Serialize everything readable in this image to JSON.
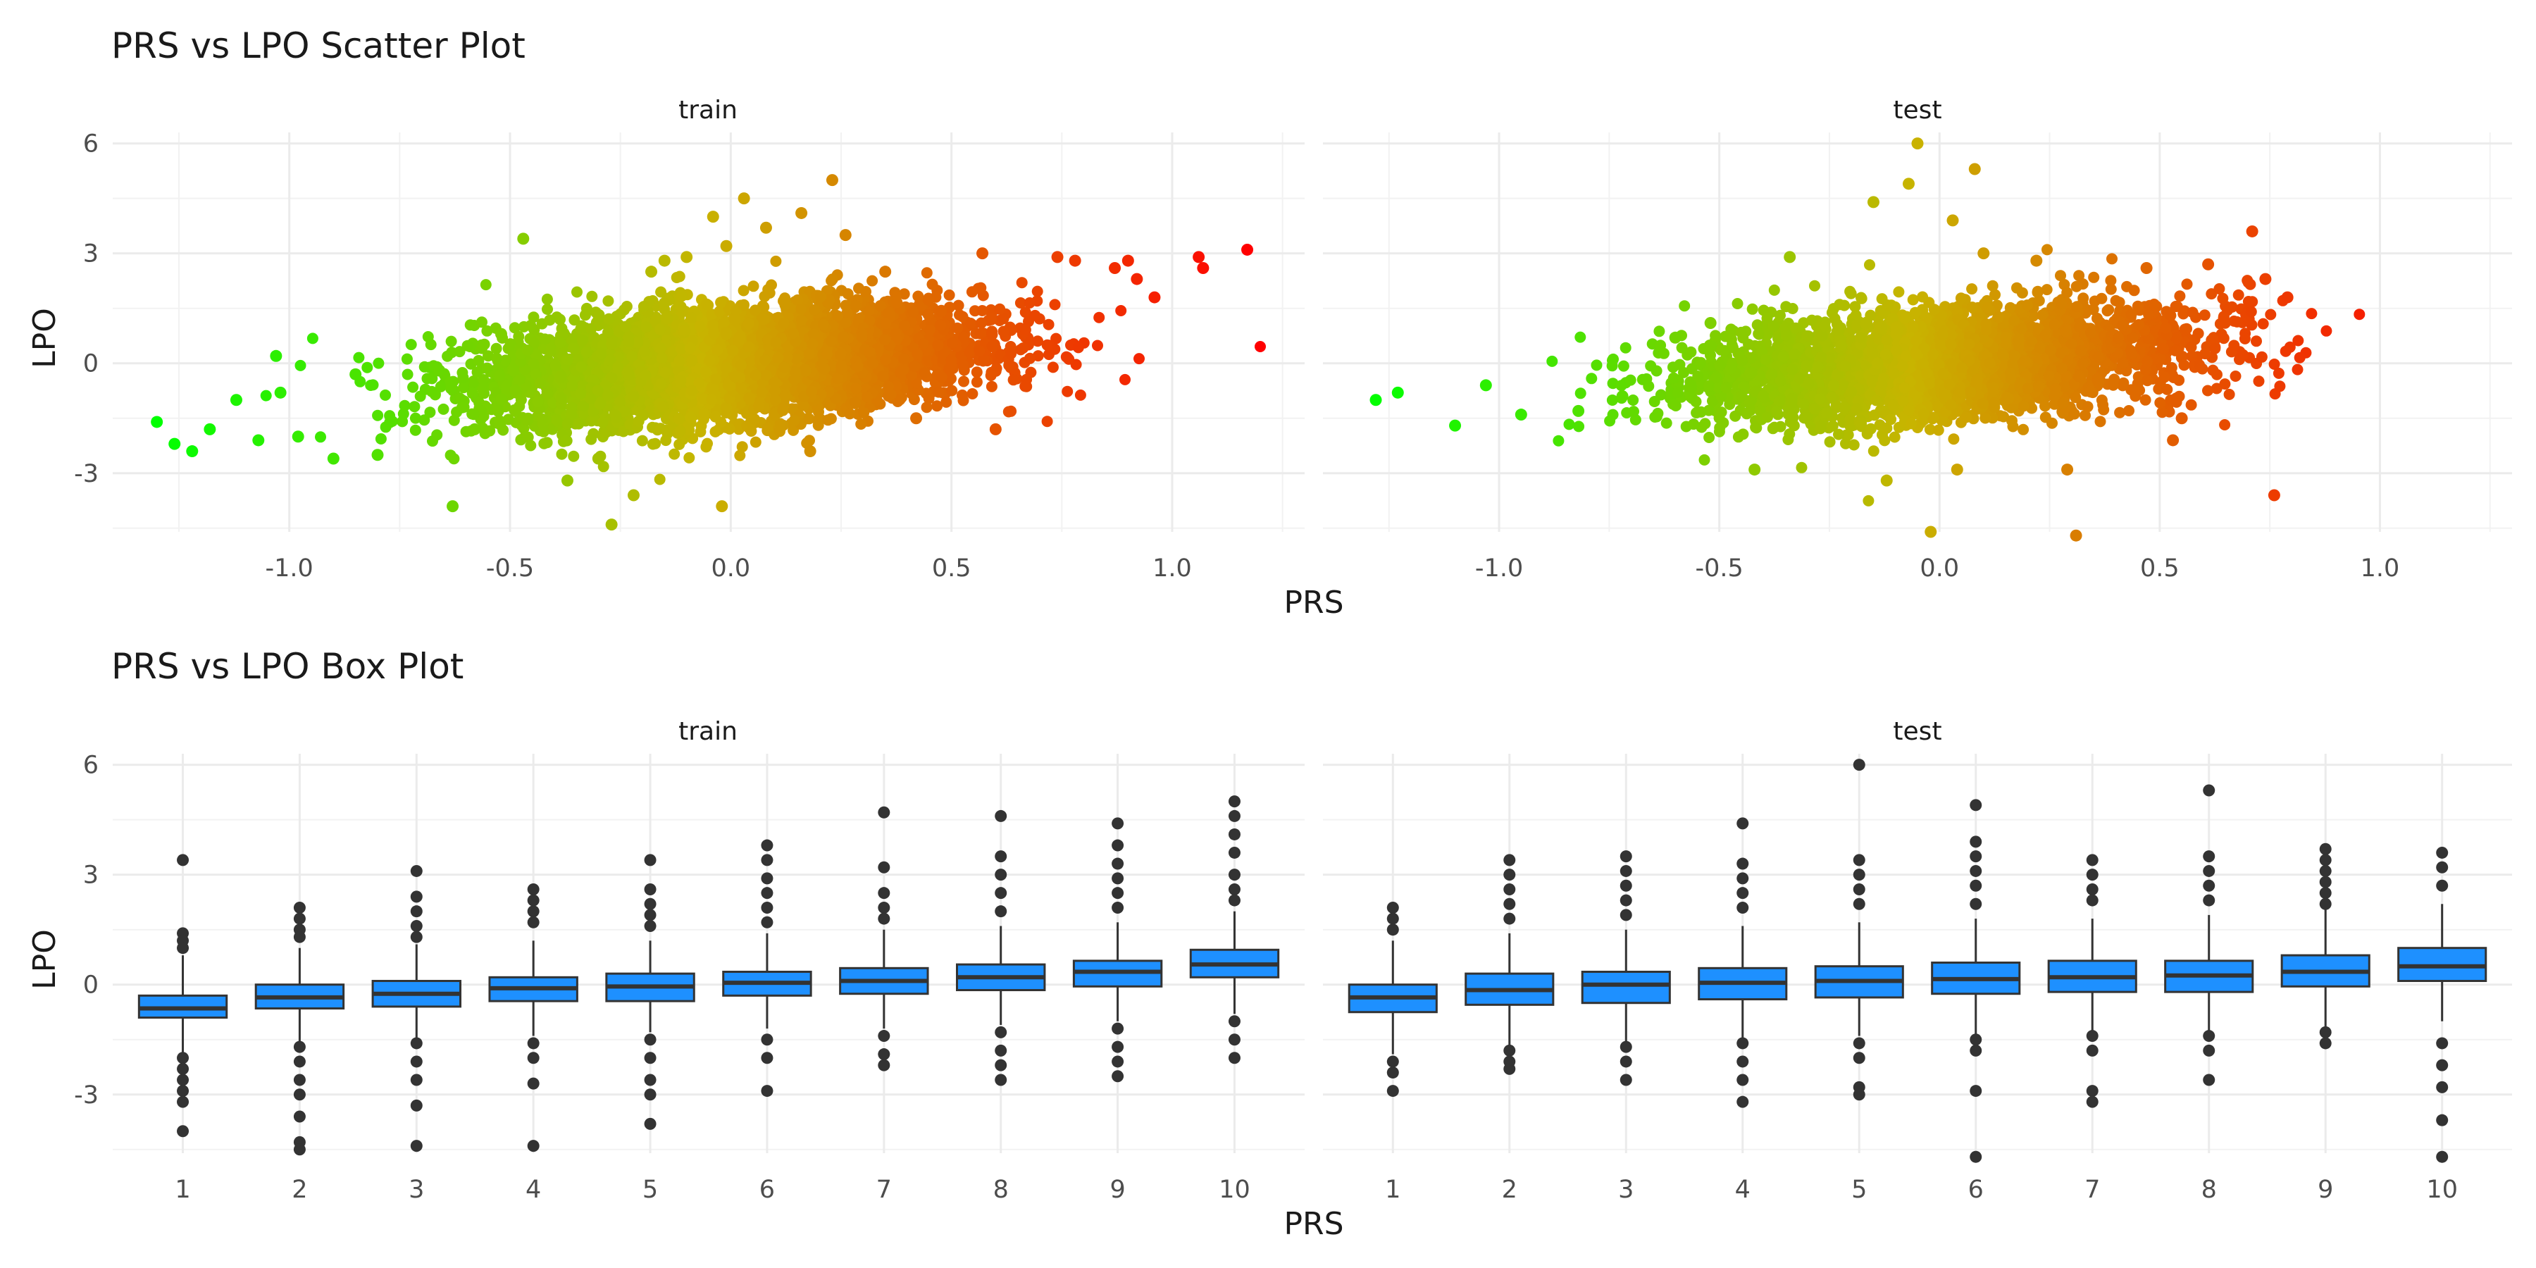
{
  "chart_data": [
    {
      "type": "scatter",
      "title": "PRS vs LPO Scatter Plot",
      "xlabel": "PRS",
      "ylabel": "LPO",
      "facets": [
        "train",
        "test"
      ],
      "xlim": [
        -1.4,
        1.3
      ],
      "ylim": [
        -4.6,
        6.3
      ],
      "xticks": [
        "-1.0",
        "-0.5",
        "0.0",
        "0.5",
        "1.0"
      ],
      "xtick_values": [
        -1.0,
        -0.5,
        0.0,
        0.5,
        1.0
      ],
      "yticks": [
        "-3",
        "0",
        "3",
        "6"
      ],
      "ytick_values": [
        -3,
        0,
        3,
        6
      ],
      "color_scale": {
        "low": "#00ff00",
        "mid": "#c8b400",
        "high": "#ff0000",
        "mapped_to": "PRS"
      },
      "grid": true,
      "legend": "none",
      "notes": "dense cloud of several thousand points per facet; representative summary points below",
      "series": [
        {
          "facet": "train",
          "points": [
            [
              -1.3,
              -1.6
            ],
            [
              -1.26,
              -2.2
            ],
            [
              -1.22,
              -2.4
            ],
            [
              -1.18,
              -1.8
            ],
            [
              -1.12,
              -1.0
            ],
            [
              -1.07,
              -2.1
            ],
            [
              -1.03,
              0.2
            ],
            [
              -1.02,
              -0.8
            ],
            [
              -0.98,
              -2.0
            ],
            [
              -0.9,
              -2.6
            ],
            [
              -0.85,
              -0.3
            ],
            [
              -0.8,
              -2.5
            ],
            [
              -0.66,
              -0.2
            ],
            [
              -0.63,
              -3.9
            ],
            [
              -0.58,
              -1.8
            ],
            [
              -0.52,
              0.8
            ],
            [
              -0.47,
              3.4
            ],
            [
              -0.37,
              -3.2
            ],
            [
              -0.3,
              -2.6
            ],
            [
              -0.27,
              -4.4
            ],
            [
              -0.22,
              -3.6
            ],
            [
              -0.18,
              2.5
            ],
            [
              -0.15,
              2.8
            ],
            [
              -0.1,
              2.9
            ],
            [
              -0.04,
              4.0
            ],
            [
              -0.02,
              -3.9
            ],
            [
              -0.01,
              3.2
            ],
            [
              0.03,
              4.5
            ],
            [
              0.08,
              3.7
            ],
            [
              0.16,
              4.1
            ],
            [
              0.18,
              -2.4
            ],
            [
              0.23,
              5.0
            ],
            [
              0.26,
              3.5
            ],
            [
              0.35,
              2.5
            ],
            [
              0.42,
              -1.5
            ],
            [
              0.57,
              3.0
            ],
            [
              0.6,
              -1.8
            ],
            [
              0.74,
              2.9
            ],
            [
              0.78,
              2.8
            ],
            [
              0.87,
              2.6
            ],
            [
              0.9,
              2.8
            ],
            [
              0.92,
              2.3
            ],
            [
              0.96,
              1.8
            ],
            [
              1.06,
              2.9
            ],
            [
              1.07,
              2.6
            ],
            [
              1.17,
              3.1
            ]
          ]
        },
        {
          "facet": "test",
          "points": [
            [
              -1.28,
              -1.0
            ],
            [
              -1.23,
              -0.8
            ],
            [
              -1.1,
              -1.7
            ],
            [
              -1.03,
              -0.6
            ],
            [
              -0.95,
              -1.4
            ],
            [
              -0.82,
              -1.3
            ],
            [
              -0.72,
              -0.9
            ],
            [
              -0.6,
              0.7
            ],
            [
              -0.52,
              1.1
            ],
            [
              -0.42,
              -2.9
            ],
            [
              -0.34,
              2.9
            ],
            [
              -0.15,
              4.4
            ],
            [
              -0.12,
              -3.2
            ],
            [
              -0.07,
              4.9
            ],
            [
              -0.05,
              6.0
            ],
            [
              -0.02,
              -4.6
            ],
            [
              0.03,
              3.9
            ],
            [
              0.04,
              -2.9
            ],
            [
              0.08,
              5.3
            ],
            [
              0.1,
              3.0
            ],
            [
              0.22,
              2.8
            ],
            [
              0.29,
              -2.9
            ],
            [
              0.31,
              -4.7
            ],
            [
              0.47,
              2.6
            ],
            [
              0.53,
              -2.1
            ],
            [
              0.55,
              -1.5
            ],
            [
              0.61,
              2.7
            ],
            [
              0.71,
              3.6
            ],
            [
              0.74,
              2.3
            ],
            [
              0.76,
              -3.6
            ],
            [
              0.79,
              1.8
            ]
          ]
        }
      ]
    },
    {
      "type": "box",
      "title": "PRS vs LPO Box Plot",
      "xlabel": "PRS",
      "ylabel": "LPO",
      "facets": [
        "train",
        "test"
      ],
      "categories": [
        "1",
        "2",
        "3",
        "4",
        "5",
        "6",
        "7",
        "8",
        "9",
        "10"
      ],
      "ylim": [
        -4.6,
        6.3
      ],
      "yticks": [
        "-3",
        "0",
        "3",
        "6"
      ],
      "ytick_values": [
        -3,
        0,
        3,
        6
      ],
      "fill_color": "#1e90ff",
      "grid": true,
      "legend": "none",
      "series": [
        {
          "facet": "train",
          "boxes": [
            {
              "q1": -0.9,
              "median": -0.65,
              "q3": -0.3,
              "lower": -1.9,
              "upper": 0.8,
              "outliers": [
                3.4,
                1.4,
                1.2,
                1.0,
                -2.0,
                -2.3,
                -2.6,
                -2.9,
                -3.2,
                -4.0
              ]
            },
            {
              "q1": -0.65,
              "median": -0.35,
              "q3": 0.0,
              "lower": -1.6,
              "upper": 1.0,
              "outliers": [
                2.1,
                1.8,
                1.5,
                1.3,
                -1.7,
                -2.1,
                -2.6,
                -3.0,
                -3.6,
                -4.3,
                -4.5
              ]
            },
            {
              "q1": -0.6,
              "median": -0.25,
              "q3": 0.1,
              "lower": -1.5,
              "upper": 1.1,
              "outliers": [
                3.1,
                2.4,
                2.0,
                1.6,
                1.3,
                -1.6,
                -2.1,
                -2.6,
                -3.3,
                -4.4
              ]
            },
            {
              "q1": -0.45,
              "median": -0.1,
              "q3": 0.2,
              "lower": -1.4,
              "upper": 1.2,
              "outliers": [
                2.6,
                2.3,
                2.0,
                1.7,
                -1.6,
                -2.0,
                -2.7,
                -4.4
              ]
            },
            {
              "q1": -0.45,
              "median": -0.05,
              "q3": 0.3,
              "lower": -1.3,
              "upper": 1.2,
              "outliers": [
                3.4,
                2.6,
                2.2,
                1.9,
                1.6,
                -1.5,
                -2.0,
                -2.6,
                -3.0,
                -3.8
              ]
            },
            {
              "q1": -0.3,
              "median": 0.05,
              "q3": 0.35,
              "lower": -1.2,
              "upper": 1.4,
              "outliers": [
                3.8,
                3.4,
                2.9,
                2.5,
                2.1,
                1.7,
                -1.5,
                -2.0,
                -2.9
              ]
            },
            {
              "q1": -0.25,
              "median": 0.1,
              "q3": 0.45,
              "lower": -1.2,
              "upper": 1.5,
              "outliers": [
                4.7,
                3.2,
                2.5,
                2.1,
                1.8,
                -1.4,
                -1.9,
                -2.2
              ]
            },
            {
              "q1": -0.15,
              "median": 0.2,
              "q3": 0.55,
              "lower": -1.1,
              "upper": 1.6,
              "outliers": [
                4.6,
                3.5,
                3.0,
                2.5,
                2.0,
                -1.3,
                -1.8,
                -2.2,
                -2.6
              ]
            },
            {
              "q1": -0.05,
              "median": 0.35,
              "q3": 0.65,
              "lower": -1.0,
              "upper": 1.7,
              "outliers": [
                4.4,
                3.8,
                3.3,
                2.9,
                2.5,
                2.1,
                -1.2,
                -1.7,
                -2.1,
                -2.5
              ]
            },
            {
              "q1": 0.2,
              "median": 0.55,
              "q3": 0.95,
              "lower": -0.8,
              "upper": 2.0,
              "outliers": [
                5.0,
                4.6,
                4.1,
                3.6,
                3.0,
                2.6,
                2.3,
                -1.0,
                -1.5,
                -2.0
              ]
            }
          ]
        },
        {
          "facet": "test",
          "boxes": [
            {
              "q1": -0.75,
              "median": -0.35,
              "q3": 0.0,
              "lower": -1.9,
              "upper": 1.2,
              "outliers": [
                2.1,
                1.8,
                1.5,
                -2.1,
                -2.4,
                -2.9
              ]
            },
            {
              "q1": -0.55,
              "median": -0.15,
              "q3": 0.3,
              "lower": -1.7,
              "upper": 1.4,
              "outliers": [
                3.4,
                3.0,
                2.6,
                2.2,
                1.8,
                -1.8,
                -2.1,
                -2.3
              ]
            },
            {
              "q1": -0.5,
              "median": 0.0,
              "q3": 0.35,
              "lower": -1.6,
              "upper": 1.5,
              "outliers": [
                3.5,
                3.1,
                2.7,
                2.3,
                1.9,
                -1.7,
                -2.1,
                -2.6
              ]
            },
            {
              "q1": -0.4,
              "median": 0.05,
              "q3": 0.45,
              "lower": -1.5,
              "upper": 1.6,
              "outliers": [
                4.4,
                3.3,
                2.9,
                2.5,
                2.1,
                -1.6,
                -2.1,
                -2.6,
                -3.2
              ]
            },
            {
              "q1": -0.35,
              "median": 0.1,
              "q3": 0.5,
              "lower": -1.4,
              "upper": 1.7,
              "outliers": [
                6.0,
                3.4,
                3.0,
                2.6,
                2.2,
                -1.6,
                -2.0,
                -2.8,
                -3.0
              ]
            },
            {
              "q1": -0.25,
              "median": 0.15,
              "q3": 0.6,
              "lower": -1.4,
              "upper": 1.8,
              "outliers": [
                4.9,
                3.9,
                3.5,
                3.1,
                2.7,
                2.2,
                -1.5,
                -1.8,
                -2.9,
                -4.7
              ]
            },
            {
              "q1": -0.2,
              "median": 0.2,
              "q3": 0.65,
              "lower": -1.3,
              "upper": 1.8,
              "outliers": [
                3.4,
                3.0,
                2.6,
                2.3,
                -1.4,
                -1.8,
                -2.9,
                -3.2
              ]
            },
            {
              "q1": -0.2,
              "median": 0.25,
              "q3": 0.65,
              "lower": -1.3,
              "upper": 1.9,
              "outliers": [
                5.3,
                3.5,
                3.1,
                2.7,
                2.3,
                -1.4,
                -1.8,
                -2.6
              ]
            },
            {
              "q1": -0.05,
              "median": 0.35,
              "q3": 0.8,
              "lower": -1.2,
              "upper": 2.1,
              "outliers": [
                3.7,
                3.4,
                3.1,
                2.8,
                2.5,
                2.2,
                -1.3,
                -1.6
              ]
            },
            {
              "q1": 0.1,
              "median": 0.5,
              "q3": 1.0,
              "lower": -1.0,
              "upper": 2.2,
              "outliers": [
                3.6,
                3.2,
                2.7,
                -1.6,
                -2.2,
                -2.8,
                -3.7,
                -4.7
              ]
            }
          ]
        }
      ]
    }
  ]
}
